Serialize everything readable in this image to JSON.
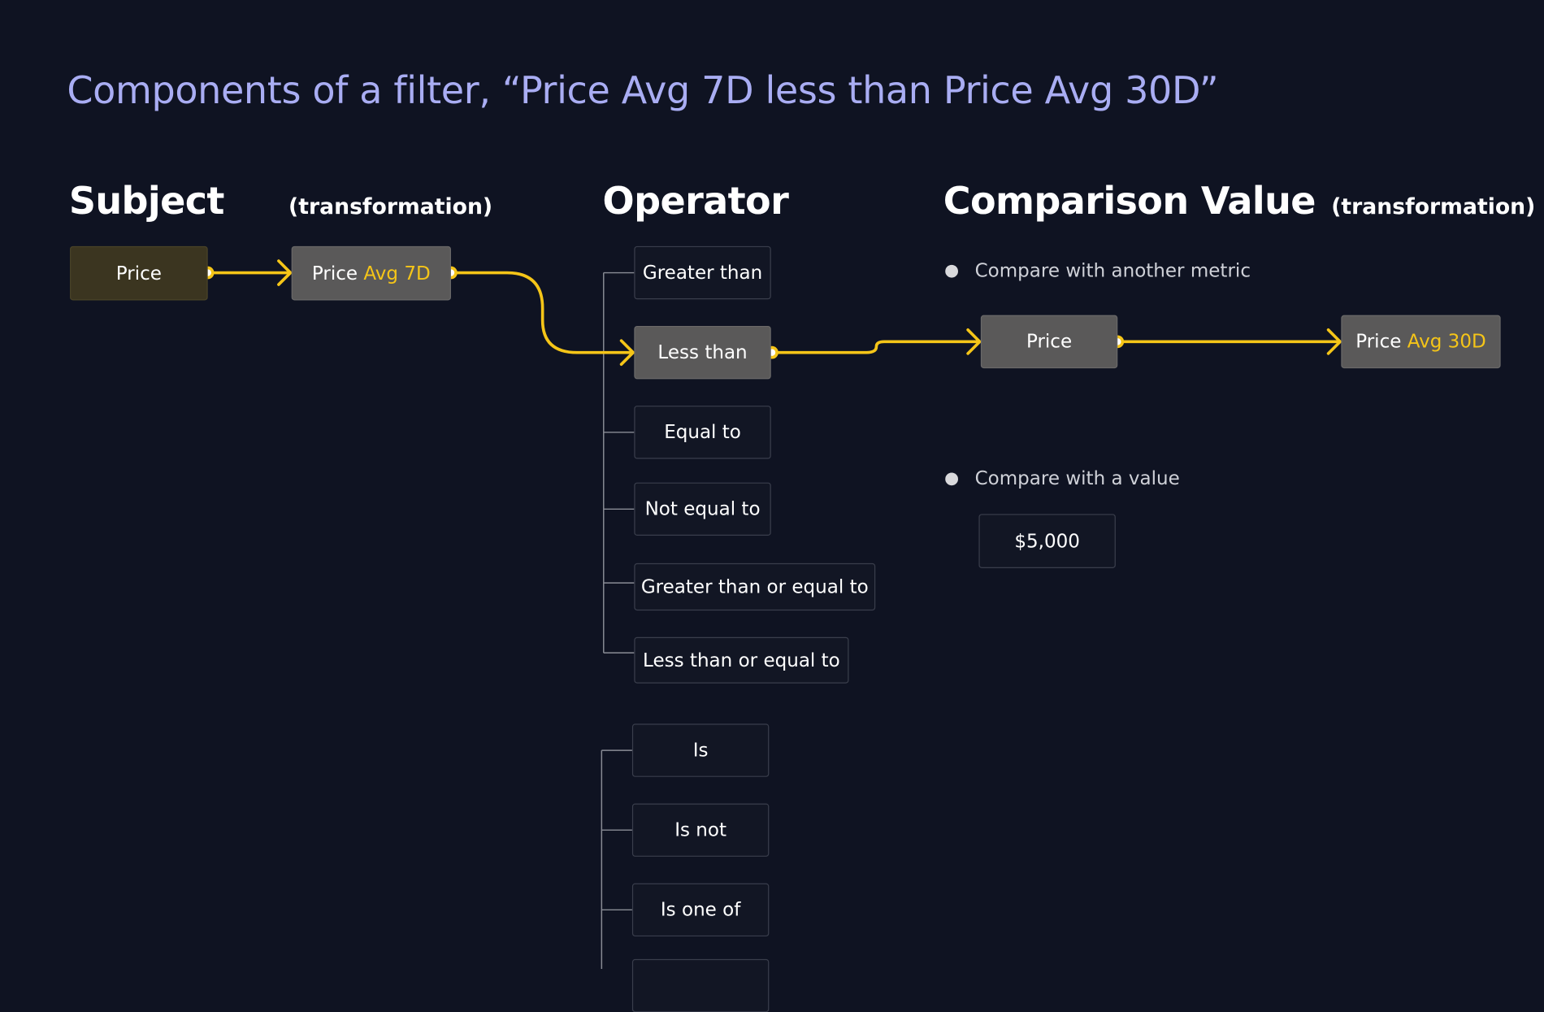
{
  "title": "Components of a filter, “Price Avg 7D less than Price Avg 30D”",
  "headings": {
    "subject": "Subject",
    "subject_transformation": "(transformation)",
    "operator": "Operator",
    "comparison_value": "Comparison Value",
    "comparison_transformation": "(transformation)"
  },
  "subject": {
    "metric": "Price",
    "transformed_metric": "Price",
    "transformed_accent": "Avg 7D"
  },
  "operators": {
    "numeric": [
      "Greater than",
      "Less than",
      "Equal to",
      "Not equal to",
      "Greater than or equal to",
      "Less than or equal to"
    ],
    "selected": "Less than",
    "categorical": [
      "Is",
      "Is not",
      "Is one of"
    ]
  },
  "comparison": {
    "option_metric_label": "Compare with another metric",
    "metric": "Price",
    "transformed_metric": "Price",
    "transformed_accent": "Avg 30D",
    "option_value_label": "Compare with a value",
    "value": "$5,000"
  },
  "colors": {
    "background": "#0f1322",
    "title": "#a9adf3",
    "accent": "#f5c518",
    "node_active": "#5a5959",
    "node_subject": "#3b3520",
    "node_border": "#3a3e4c"
  }
}
